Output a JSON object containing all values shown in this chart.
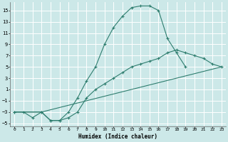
{
  "xlabel": "Humidex (Indice chaleur)",
  "bg_color": "#cce8e8",
  "grid_color": "#ffffff",
  "line_color": "#2e7d6e",
  "xlim": [
    -0.5,
    23.5
  ],
  "ylim": [
    -5.5,
    16.5
  ],
  "xticks": [
    0,
    1,
    2,
    3,
    4,
    5,
    6,
    7,
    8,
    9,
    10,
    11,
    12,
    13,
    14,
    15,
    16,
    17,
    18,
    19,
    20,
    21,
    22,
    23
  ],
  "yticks": [
    -5,
    -3,
    -1,
    1,
    3,
    5,
    7,
    9,
    11,
    13,
    15
  ],
  "series1_x": [
    0,
    1,
    2,
    3,
    4,
    5,
    6,
    7,
    8,
    9,
    10,
    11,
    12,
    13,
    14,
    15,
    16,
    17,
    18,
    19
  ],
  "series1_y": [
    -3,
    -3,
    -4,
    -3,
    -4.5,
    -4.5,
    -3,
    -0.5,
    2.5,
    5,
    9,
    12,
    14,
    15.5,
    15.8,
    15.8,
    15,
    10,
    7.5,
    5
  ],
  "series2_x": [
    0,
    3,
    4,
    5,
    6,
    7,
    8,
    9,
    10,
    11,
    12,
    13,
    14,
    15,
    16,
    17,
    18,
    19,
    20,
    21,
    22,
    23
  ],
  "series2_y": [
    -3,
    -3,
    -4.5,
    -4.5,
    -4,
    -3,
    -0.5,
    1,
    2,
    3,
    4,
    5,
    5.5,
    6,
    6.5,
    7.5,
    8,
    7.5,
    7,
    6.5,
    5.5,
    5
  ],
  "series3_x": [
    0,
    3,
    23
  ],
  "series3_y": [
    -3,
    -3,
    5
  ]
}
